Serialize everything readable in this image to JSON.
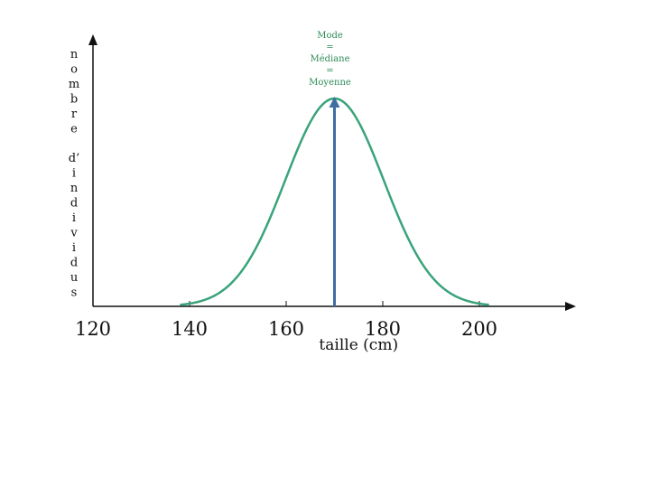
{
  "chart_data": {
    "type": "line",
    "title": "",
    "xlabel": "taille (cm)",
    "ylabel": "nombre d' individus",
    "ylabel_letters": [
      "n",
      "o",
      "m",
      "b",
      "r",
      "e",
      "",
      "d’",
      "i",
      "n",
      "d",
      "i",
      "v",
      "i",
      "d",
      "u",
      "s"
    ],
    "xlim": [
      120,
      220
    ],
    "ylim": [
      0,
      1.08
    ],
    "x_ticks": [
      120,
      140,
      160,
      170,
      180,
      200
    ],
    "x_tick_labels": [
      "120",
      "140",
      "160",
      "180",
      "200"
    ],
    "x_tick_label_values": [
      120,
      140,
      160,
      180,
      200
    ],
    "grid": false,
    "series": [
      {
        "color": "#3aa37a",
        "x": [
          138,
          140,
          145,
          150,
          155,
          160,
          165,
          170,
          175,
          180,
          185,
          190,
          195,
          200,
          202
        ],
        "y": [
          0.01,
          0.02,
          0.08,
          0.21,
          0.42,
          0.7,
          0.93,
          1.0,
          0.93,
          0.7,
          0.42,
          0.21,
          0.08,
          0.02,
          0.01
        ]
      }
    ],
    "annotations": [
      {
        "text": [
          "Mode",
          "=",
          "Médiane",
          "=",
          "Moyenne"
        ],
        "x": 170,
        "color": "#2e8b57"
      }
    ],
    "marker_arrow": {
      "x": 170,
      "color": "#3f6fa0"
    },
    "axis_color": "#111111"
  }
}
